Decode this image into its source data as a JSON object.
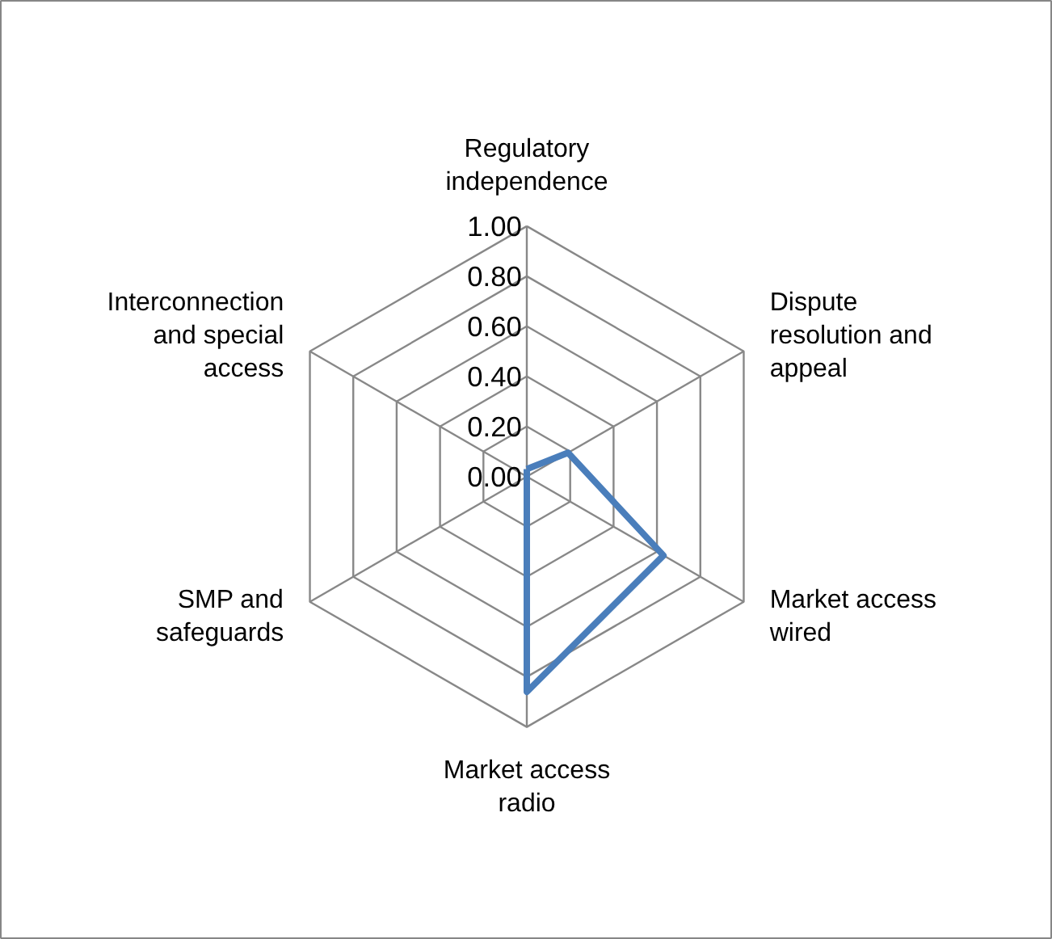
{
  "chart_data": {
    "type": "radar",
    "categories": [
      "Regulatory independence",
      "Dispute resolution and appeal",
      "Market access wired",
      "Market access radio",
      "SMP and safeguards",
      "Interconnection and special access"
    ],
    "series": [
      {
        "color": "#4a7ebb",
        "values": [
          0.03,
          0.19,
          0.63,
          0.86,
          0,
          0
        ]
      }
    ],
    "ylim": [
      0,
      1
    ],
    "yticks": [
      {
        "value": 0,
        "label": "0.00"
      },
      {
        "value": 0.2,
        "label": "0.20"
      },
      {
        "value": 0.4,
        "label": "0.40"
      },
      {
        "value": 0.6,
        "label": "0.60"
      },
      {
        "value": 0.8,
        "label": "0.80"
      },
      {
        "value": 1,
        "label": "1.00"
      }
    ],
    "grid": true
  }
}
